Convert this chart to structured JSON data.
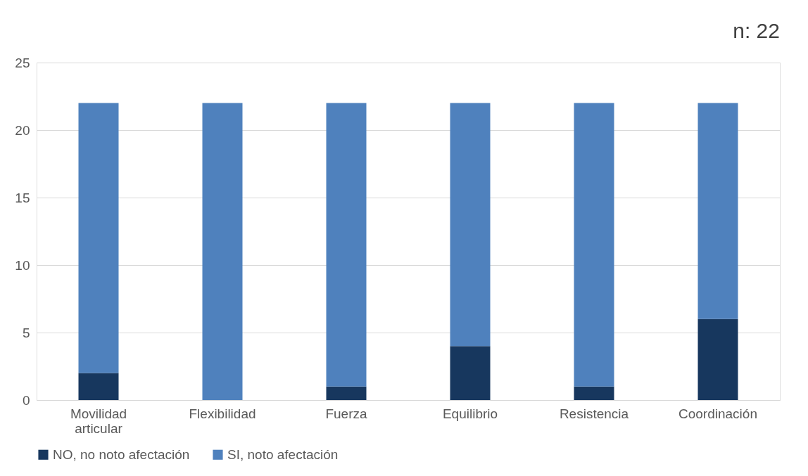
{
  "chart_data": {
    "type": "bar",
    "stacked": true,
    "categories": [
      "Movilidad articular",
      "Flexibilidad",
      "Fuerza",
      "Equilibrio",
      "Resistencia",
      "Coordinación"
    ],
    "series": [
      {
        "name": "NO, no noto afectación",
        "color": "#17375e",
        "values": [
          2,
          0,
          1,
          4,
          1,
          6
        ]
      },
      {
        "name": "SI, noto afectación",
        "color": "#4f81bd",
        "values": [
          20,
          22,
          21,
          18,
          21,
          16
        ]
      }
    ],
    "ylim": [
      0,
      25
    ],
    "yticks": [
      0,
      5,
      10,
      15,
      20,
      25
    ],
    "grid": "y",
    "legend": "bottom",
    "annotations": [
      "n: 22"
    ]
  }
}
